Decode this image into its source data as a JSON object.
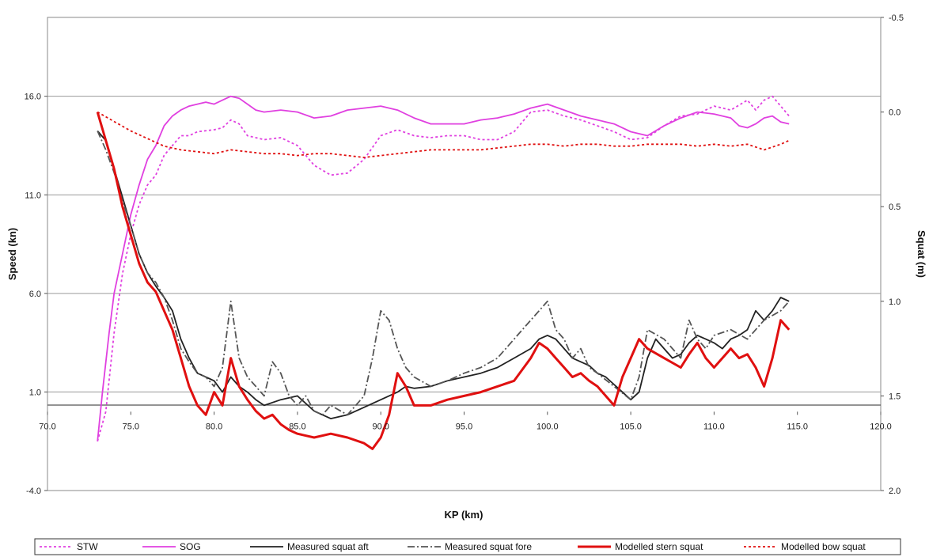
{
  "chart_data": {
    "type": "line",
    "xlabel": "KP (km)",
    "ylabel": "Speed (kn)",
    "y2label": "Squat (m)",
    "xlim": [
      70,
      120
    ],
    "ylim": [
      -4,
      20
    ],
    "y2lim": [
      2.0,
      -0.5
    ],
    "x_ticks": [
      "70.0",
      "75.0",
      "80.0",
      "85.0",
      "90.0",
      "95.0",
      "100.0",
      "105.0",
      "110.0",
      "115.0",
      "120.0"
    ],
    "y_ticks": [
      "-4.0",
      "1.0",
      "6.0",
      "11.0",
      "16.0"
    ],
    "y2_ticks": [
      "-0.5",
      "0.0",
      "0.5",
      "1.0",
      "1.5",
      "2.0"
    ],
    "grid": "horizontal",
    "legend_position": "bottom",
    "series": [
      {
        "name": "STW",
        "axis": "left",
        "color": "#e040e0",
        "dash": "dotted",
        "x": [
          73.0,
          73.5,
          74.0,
          74.5,
          75.0,
          75.5,
          76.0,
          76.5,
          77.0,
          77.5,
          78.0,
          78.5,
          79.0,
          80.0,
          80.5,
          81.0,
          81.5,
          82.0,
          83.0,
          84.0,
          85.0,
          86.0,
          87.0,
          88.0,
          89.0,
          90.0,
          91.0,
          92.0,
          93.0,
          94.0,
          95.0,
          96.0,
          97.0,
          98.0,
          99.0,
          100.0,
          101.0,
          102.0,
          103.0,
          104.0,
          105.0,
          106.0,
          107.0,
          108.0,
          109.0,
          110.0,
          111.0,
          112.0,
          112.5,
          113.0,
          113.5,
          114.0,
          114.5
        ],
        "values": [
          -1.5,
          0.0,
          4.0,
          7.0,
          9.0,
          10.5,
          11.5,
          12.0,
          13.0,
          13.5,
          14.0,
          14.0,
          14.2,
          14.3,
          14.4,
          14.8,
          14.6,
          14.0,
          13.8,
          13.9,
          13.5,
          12.5,
          12.0,
          12.1,
          12.8,
          14.0,
          14.3,
          14.0,
          13.9,
          14.0,
          14.0,
          13.8,
          13.8,
          14.2,
          15.2,
          15.3,
          15.0,
          14.8,
          14.5,
          14.2,
          13.8,
          13.9,
          14.5,
          15.0,
          15.1,
          15.5,
          15.3,
          15.8,
          15.3,
          15.8,
          16.0,
          15.5,
          15.0
        ]
      },
      {
        "name": "SOG",
        "axis": "left",
        "color": "#e040e0",
        "dash": "solid",
        "x": [
          73.0,
          73.3,
          73.7,
          74.0,
          74.5,
          75.0,
          75.5,
          76.0,
          76.5,
          77.0,
          77.5,
          78.0,
          78.5,
          79.0,
          79.5,
          80.0,
          80.5,
          81.0,
          81.5,
          82.0,
          82.5,
          83.0,
          84.0,
          85.0,
          86.0,
          87.0,
          88.0,
          89.0,
          90.0,
          91.0,
          92.0,
          93.0,
          94.0,
          95.0,
          96.0,
          97.0,
          98.0,
          99.0,
          100.0,
          101.0,
          102.0,
          103.0,
          104.0,
          105.0,
          106.0,
          107.0,
          108.0,
          109.0,
          110.0,
          111.0,
          111.5,
          112.0,
          112.5,
          113.0,
          113.5,
          114.0,
          114.5
        ],
        "values": [
          -1.5,
          1.0,
          4.0,
          6.0,
          8.0,
          10.0,
          11.5,
          12.8,
          13.5,
          14.5,
          15.0,
          15.3,
          15.5,
          15.6,
          15.7,
          15.6,
          15.8,
          16.0,
          15.9,
          15.6,
          15.3,
          15.2,
          15.3,
          15.2,
          14.9,
          15.0,
          15.3,
          15.4,
          15.5,
          15.3,
          14.9,
          14.6,
          14.6,
          14.6,
          14.8,
          14.9,
          15.1,
          15.4,
          15.6,
          15.3,
          15.0,
          14.8,
          14.6,
          14.2,
          14.0,
          14.5,
          14.9,
          15.2,
          15.1,
          14.9,
          14.5,
          14.4,
          14.6,
          14.9,
          15.0,
          14.7,
          14.6
        ]
      },
      {
        "name": "Measured squat aft",
        "axis": "right",
        "color": "#222222",
        "dash": "solid",
        "x": [
          73.0,
          73.5,
          74.0,
          74.5,
          75.0,
          75.5,
          76.0,
          76.5,
          77.0,
          77.5,
          78.0,
          78.5,
          79.0,
          79.5,
          80.0,
          80.5,
          81.0,
          81.5,
          82.0,
          82.5,
          83.0,
          84.0,
          85.0,
          86.0,
          86.5,
          87.0,
          88.0,
          89.0,
          90.0,
          91.0,
          91.5,
          92.0,
          93.0,
          94.0,
          95.0,
          96.0,
          97.0,
          98.0,
          99.0,
          99.5,
          100.0,
          100.5,
          101.0,
          101.5,
          102.0,
          102.5,
          103.0,
          103.5,
          104.0,
          104.5,
          105.0,
          105.5,
          106.0,
          106.5,
          107.0,
          107.5,
          108.0,
          108.5,
          109.0,
          109.5,
          110.0,
          110.5,
          111.0,
          111.5,
          112.0,
          112.5,
          113.0,
          113.5,
          114.0,
          114.5
        ],
        "values": [
          0.1,
          0.15,
          0.3,
          0.45,
          0.6,
          0.75,
          0.85,
          0.92,
          0.98,
          1.05,
          1.2,
          1.3,
          1.38,
          1.4,
          1.42,
          1.48,
          1.4,
          1.45,
          1.48,
          1.52,
          1.55,
          1.52,
          1.5,
          1.58,
          1.6,
          1.62,
          1.6,
          1.56,
          1.52,
          1.48,
          1.45,
          1.46,
          1.45,
          1.42,
          1.4,
          1.38,
          1.35,
          1.3,
          1.25,
          1.2,
          1.18,
          1.2,
          1.25,
          1.3,
          1.32,
          1.34,
          1.38,
          1.4,
          1.44,
          1.48,
          1.52,
          1.48,
          1.3,
          1.2,
          1.25,
          1.3,
          1.28,
          1.22,
          1.18,
          1.2,
          1.22,
          1.25,
          1.2,
          1.18,
          1.15,
          1.05,
          1.1,
          1.05,
          0.98,
          1.0
        ]
      },
      {
        "name": "Measured squat fore",
        "axis": "right",
        "color": "#555555",
        "dash": "dashdot",
        "x": [
          73.0,
          73.5,
          74.0,
          74.5,
          75.0,
          75.5,
          76.0,
          76.5,
          77.0,
          77.5,
          78.0,
          78.5,
          79.0,
          79.5,
          80.0,
          80.5,
          81.0,
          81.5,
          82.0,
          82.5,
          83.0,
          83.5,
          84.0,
          84.5,
          85.0,
          85.5,
          86.0,
          86.5,
          87.0,
          88.0,
          89.0,
          89.5,
          90.0,
          90.5,
          91.0,
          91.5,
          92.0,
          93.0,
          94.0,
          95.0,
          96.0,
          97.0,
          98.0,
          99.0,
          99.5,
          100.0,
          100.5,
          101.0,
          101.5,
          102.0,
          102.5,
          103.0,
          104.0,
          105.0,
          105.5,
          106.0,
          107.0,
          107.5,
          108.0,
          108.5,
          109.0,
          109.5,
          110.0,
          111.0,
          112.0,
          113.0,
          114.0,
          114.5
        ],
        "values": [
          0.1,
          0.2,
          0.32,
          0.47,
          0.6,
          0.75,
          0.85,
          0.9,
          0.98,
          1.1,
          1.25,
          1.32,
          1.38,
          1.4,
          1.45,
          1.35,
          1.0,
          1.3,
          1.4,
          1.45,
          1.5,
          1.32,
          1.38,
          1.5,
          1.55,
          1.5,
          1.58,
          1.6,
          1.55,
          1.6,
          1.5,
          1.3,
          1.05,
          1.1,
          1.25,
          1.35,
          1.4,
          1.45,
          1.42,
          1.38,
          1.35,
          1.3,
          1.2,
          1.1,
          1.05,
          1.0,
          1.15,
          1.2,
          1.3,
          1.25,
          1.35,
          1.38,
          1.45,
          1.52,
          1.4,
          1.15,
          1.2,
          1.25,
          1.3,
          1.1,
          1.2,
          1.25,
          1.18,
          1.15,
          1.2,
          1.1,
          1.05,
          1.0
        ]
      },
      {
        "name": "Modelled stern squat",
        "axis": "right",
        "color": "#e01010",
        "dash": "solid",
        "x": [
          73.0,
          73.5,
          74.0,
          74.5,
          75.0,
          75.5,
          76.0,
          76.5,
          77.0,
          77.5,
          78.0,
          78.5,
          79.0,
          79.5,
          80.0,
          80.5,
          81.0,
          81.5,
          82.0,
          82.5,
          83.0,
          83.5,
          84.0,
          84.5,
          85.0,
          86.0,
          87.0,
          88.0,
          89.0,
          89.5,
          90.0,
          90.5,
          91.0,
          91.5,
          92.0,
          93.0,
          94.0,
          95.0,
          96.0,
          97.0,
          98.0,
          99.0,
          99.5,
          100.0,
          100.5,
          101.0,
          101.5,
          102.0,
          102.5,
          103.0,
          103.5,
          104.0,
          104.5,
          105.0,
          105.5,
          106.0,
          107.0,
          108.0,
          108.5,
          109.0,
          109.5,
          110.0,
          111.0,
          111.5,
          112.0,
          112.5,
          113.0,
          113.5,
          114.0,
          114.5
        ],
        "values": [
          0.0,
          0.15,
          0.3,
          0.5,
          0.65,
          0.8,
          0.9,
          0.95,
          1.05,
          1.15,
          1.3,
          1.45,
          1.55,
          1.6,
          1.48,
          1.55,
          1.3,
          1.45,
          1.52,
          1.58,
          1.62,
          1.6,
          1.65,
          1.68,
          1.7,
          1.72,
          1.7,
          1.72,
          1.75,
          1.78,
          1.72,
          1.6,
          1.38,
          1.45,
          1.55,
          1.55,
          1.52,
          1.5,
          1.48,
          1.45,
          1.42,
          1.3,
          1.22,
          1.25,
          1.3,
          1.35,
          1.4,
          1.38,
          1.42,
          1.45,
          1.5,
          1.55,
          1.4,
          1.3,
          1.2,
          1.25,
          1.3,
          1.35,
          1.28,
          1.22,
          1.3,
          1.35,
          1.25,
          1.3,
          1.28,
          1.35,
          1.45,
          1.3,
          1.1,
          1.15
        ]
      },
      {
        "name": "Modelled bow squat",
        "axis": "right",
        "color": "#e01010",
        "dash": "dotted",
        "x": [
          73.0,
          74.0,
          75.0,
          76.0,
          77.0,
          78.0,
          79.0,
          80.0,
          81.0,
          82.0,
          83.0,
          84.0,
          85.0,
          86.0,
          87.0,
          88.0,
          89.0,
          90.0,
          91.0,
          92.0,
          93.0,
          94.0,
          95.0,
          96.0,
          97.0,
          98.0,
          99.0,
          100.0,
          101.0,
          102.0,
          103.0,
          104.0,
          105.0,
          106.0,
          107.0,
          108.0,
          109.0,
          110.0,
          111.0,
          112.0,
          113.0,
          114.0,
          114.5
        ],
        "values": [
          0.0,
          0.05,
          0.1,
          0.14,
          0.18,
          0.2,
          0.21,
          0.22,
          0.2,
          0.21,
          0.22,
          0.22,
          0.23,
          0.22,
          0.22,
          0.23,
          0.24,
          0.23,
          0.22,
          0.21,
          0.2,
          0.2,
          0.2,
          0.2,
          0.19,
          0.18,
          0.17,
          0.17,
          0.18,
          0.17,
          0.17,
          0.18,
          0.18,
          0.17,
          0.17,
          0.17,
          0.18,
          0.17,
          0.18,
          0.17,
          0.2,
          0.17,
          0.15
        ]
      }
    ]
  }
}
